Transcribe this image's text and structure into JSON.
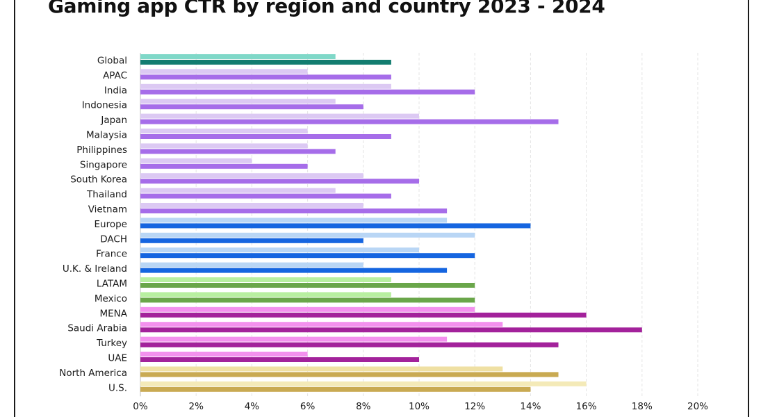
{
  "chart_data": {
    "type": "bar",
    "orientation": "horizontal",
    "title": "Gaming app CTR by region and country 2023 - 2024",
    "xlabel": "",
    "ylabel": "",
    "xlim": [
      0,
      20
    ],
    "x_ticks": [
      "0%",
      "2%",
      "4%",
      "6%",
      "8%",
      "10%",
      "12%",
      "14%",
      "16%",
      "18%",
      "20%"
    ],
    "grid": "vertical dashed",
    "categories": [
      "Global",
      "APAC",
      "India",
      "Indonesia",
      "Japan",
      "Malaysia",
      "Philippines",
      "Singapore",
      "South Korea",
      "Thailand",
      "Vietnam",
      "Europe",
      "DACH",
      "France",
      "U.K. & Ireland",
      "LATAM",
      "Mexico",
      "MENA",
      "Saudi Arabia",
      "Turkey",
      "UAE",
      "North America",
      "U.S."
    ],
    "series": [
      {
        "values": [
          7,
          6,
          9,
          7,
          10,
          6,
          6,
          4,
          8,
          7,
          8,
          11,
          12,
          10,
          8,
          9,
          9,
          12,
          13,
          11,
          6,
          13,
          16
        ]
      },
      {
        "values": [
          9,
          9,
          12,
          8,
          15,
          9,
          7,
          6,
          10,
          9,
          11,
          14,
          8,
          12,
          11,
          12,
          12,
          16,
          18,
          15,
          10,
          15,
          14
        ]
      }
    ],
    "colors": {
      "light": [
        "#7fd8c8",
        "#dcc9f3",
        "#dcc9f3",
        "#dcc9f3",
        "#dcc9f3",
        "#dcc9f3",
        "#dcc9f3",
        "#dcc9f3",
        "#dcc9f3",
        "#dcc9f3",
        "#dcc9f3",
        "#b9d6f5",
        "#b9d6f5",
        "#b9d6f5",
        "#b9d6f5",
        "#b8efa0",
        "#b8efa0",
        "#f391ee",
        "#f391ee",
        "#f391ee",
        "#f391ee",
        "#efe0a3",
        "#f4eab8"
      ],
      "dark": [
        "#137d70",
        "#a66de9",
        "#a66de9",
        "#a66de9",
        "#a66de9",
        "#a66de9",
        "#a66de9",
        "#a66de9",
        "#a66de9",
        "#a66de9",
        "#a66de9",
        "#1565e0",
        "#1565e0",
        "#1565e0",
        "#1565e0",
        "#6aa64a",
        "#6aa64a",
        "#a3229b",
        "#a3229b",
        "#a3229b",
        "#a3229b",
        "#c9aa52",
        "#c9aa52"
      ]
    }
  }
}
